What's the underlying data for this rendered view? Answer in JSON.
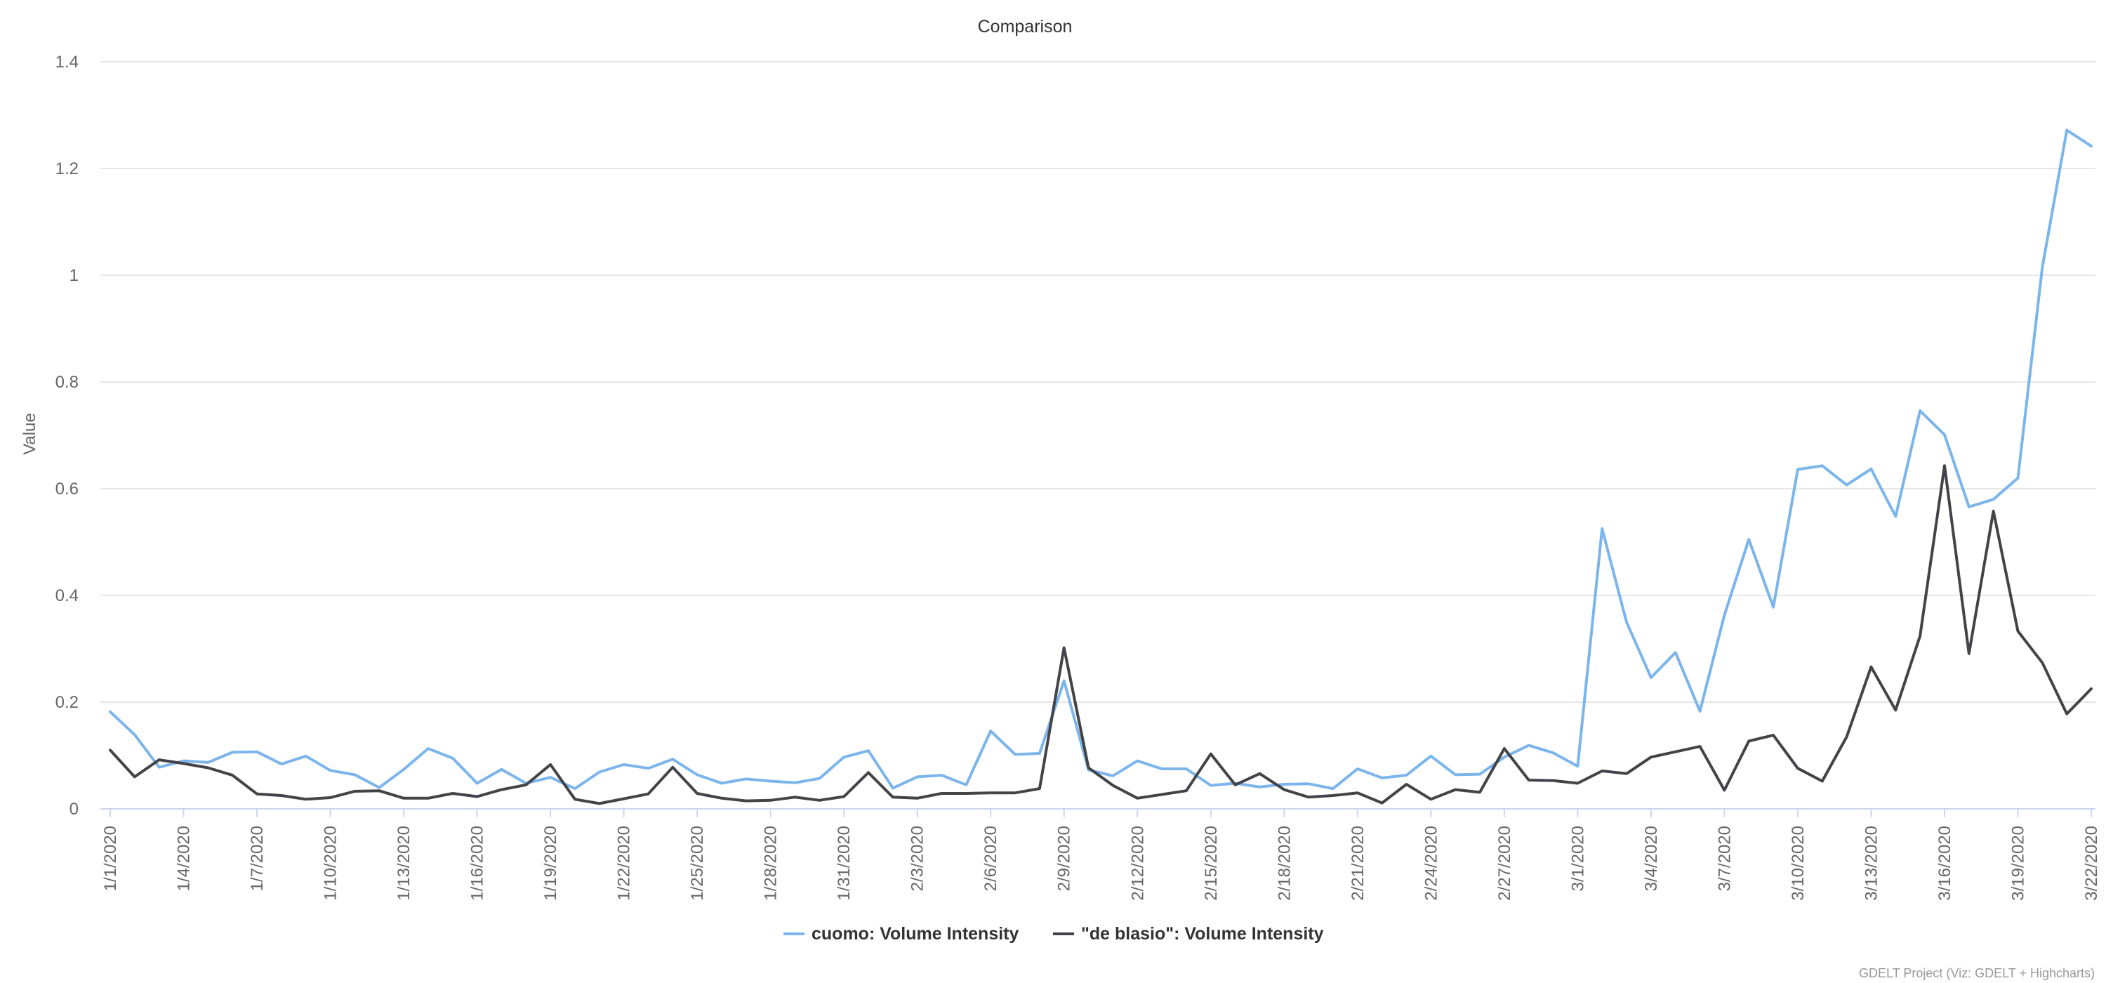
{
  "chart_data": {
    "type": "line",
    "title": "Comparison",
    "xlabel": "",
    "ylabel": "Value",
    "ylim": [
      0,
      1.4
    ],
    "y_ticks": [
      "0",
      "0.2",
      "0.4",
      "0.6",
      "0.8",
      "1",
      "1.2",
      "1.4"
    ],
    "grid": true,
    "legend_placement": "bottom-center",
    "x_tick_labels": [
      "1/1/2020",
      "1/4/2020",
      "1/7/2020",
      "1/10/2020",
      "1/13/2020",
      "1/16/2020",
      "1/19/2020",
      "1/22/2020",
      "1/25/2020",
      "1/28/2020",
      "1/31/2020",
      "2/3/2020",
      "2/6/2020",
      "2/9/2020",
      "2/12/2020",
      "2/15/2020",
      "2/18/2020",
      "2/21/2020",
      "2/24/2020",
      "2/27/2020",
      "3/1/2020",
      "3/4/2020",
      "3/7/2020",
      "3/10/2020",
      "3/13/2020",
      "3/16/2020",
      "3/19/2020",
      "3/22/2020"
    ],
    "x": [
      "1/1/2020",
      "1/2/2020",
      "1/3/2020",
      "1/4/2020",
      "1/5/2020",
      "1/6/2020",
      "1/7/2020",
      "1/8/2020",
      "1/9/2020",
      "1/10/2020",
      "1/11/2020",
      "1/12/2020",
      "1/13/2020",
      "1/14/2020",
      "1/15/2020",
      "1/16/2020",
      "1/17/2020",
      "1/18/2020",
      "1/19/2020",
      "1/20/2020",
      "1/21/2020",
      "1/22/2020",
      "1/23/2020",
      "1/24/2020",
      "1/25/2020",
      "1/26/2020",
      "1/27/2020",
      "1/28/2020",
      "1/29/2020",
      "1/30/2020",
      "1/31/2020",
      "2/1/2020",
      "2/2/2020",
      "2/3/2020",
      "2/4/2020",
      "2/5/2020",
      "2/6/2020",
      "2/7/2020",
      "2/8/2020",
      "2/9/2020",
      "2/10/2020",
      "2/11/2020",
      "2/12/2020",
      "2/13/2020",
      "2/14/2020",
      "2/15/2020",
      "2/16/2020",
      "2/17/2020",
      "2/18/2020",
      "2/19/2020",
      "2/20/2020",
      "2/21/2020",
      "2/22/2020",
      "2/23/2020",
      "2/24/2020",
      "2/25/2020",
      "2/26/2020",
      "2/27/2020",
      "2/28/2020",
      "2/29/2020",
      "3/1/2020",
      "3/2/2020",
      "3/3/2020",
      "3/4/2020",
      "3/5/2020",
      "3/6/2020",
      "3/7/2020",
      "3/8/2020",
      "3/9/2020",
      "3/10/2020",
      "3/11/2020",
      "3/12/2020",
      "3/13/2020",
      "3/14/2020",
      "3/15/2020",
      "3/16/2020",
      "3/17/2020",
      "3/18/2020",
      "3/19/2020",
      "3/20/2020",
      "3/21/2020",
      "3/22/2020"
    ],
    "series": [
      {
        "name": "cuomo: Volume Intensity",
        "color": "#7cb5ec",
        "values": [
          0.182,
          0.139,
          0.078,
          0.09,
          0.087,
          0.106,
          0.107,
          0.084,
          0.099,
          0.072,
          0.064,
          0.04,
          0.074,
          0.113,
          0.095,
          0.048,
          0.074,
          0.048,
          0.059,
          0.038,
          0.069,
          0.083,
          0.076,
          0.093,
          0.064,
          0.048,
          0.056,
          0.052,
          0.049,
          0.057,
          0.097,
          0.109,
          0.039,
          0.06,
          0.063,
          0.045,
          0.146,
          0.102,
          0.104,
          0.24,
          0.073,
          0.062,
          0.09,
          0.075,
          0.075,
          0.044,
          0.048,
          0.041,
          0.046,
          0.047,
          0.038,
          0.075,
          0.058,
          0.063,
          0.099,
          0.064,
          0.065,
          0.097,
          0.119,
          0.105,
          0.08,
          0.525,
          0.35,
          0.246,
          0.293,
          0.183,
          0.363,
          0.505,
          0.378,
          0.636,
          0.643,
          0.607,
          0.637,
          0.548,
          0.746,
          0.701,
          0.566,
          0.58,
          0.62,
          1.015,
          1.272,
          1.242
        ]
      },
      {
        "name": "\"de blasio\": Volume Intensity",
        "color": "#434348",
        "values": [
          0.11,
          0.06,
          0.092,
          0.085,
          0.077,
          0.063,
          0.028,
          0.025,
          0.018,
          0.021,
          0.033,
          0.034,
          0.02,
          0.02,
          0.029,
          0.023,
          0.036,
          0.045,
          0.083,
          0.018,
          0.01,
          0.019,
          0.028,
          0.078,
          0.029,
          0.02,
          0.015,
          0.016,
          0.022,
          0.016,
          0.023,
          0.068,
          0.022,
          0.02,
          0.029,
          0.029,
          0.03,
          0.03,
          0.038,
          0.302,
          0.077,
          0.044,
          0.02,
          0.027,
          0.034,
          0.103,
          0.045,
          0.066,
          0.036,
          0.022,
          0.025,
          0.03,
          0.011,
          0.046,
          0.018,
          0.036,
          0.031,
          0.113,
          0.054,
          0.053,
          0.048,
          0.071,
          0.066,
          0.097,
          0.107,
          0.117,
          0.035,
          0.127,
          0.138,
          0.076,
          0.052,
          0.135,
          0.266,
          0.185,
          0.324,
          0.643,
          0.291,
          0.558,
          0.333,
          0.274,
          0.178,
          0.225
        ]
      }
    ],
    "credit": "GDELT Project (Viz: GDELT + Highcharts)"
  }
}
